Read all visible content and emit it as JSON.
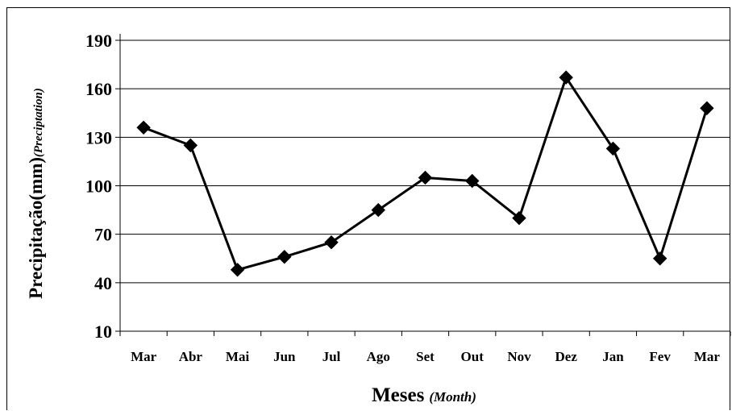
{
  "chart_data": {
    "type": "line",
    "categories": [
      "Mar",
      "Abr",
      "Mai",
      "Jun",
      "Jul",
      "Ago",
      "Set",
      "Out",
      "Nov",
      "Dez",
      "Jan",
      "Fev",
      "Mar"
    ],
    "series": [
      {
        "values": [
          136,
          125,
          48,
          56,
          65,
          85,
          105,
          103,
          80,
          167,
          123,
          55,
          148
        ]
      }
    ],
    "ylim": [
      10,
      190
    ],
    "yticks": [
      10,
      40,
      70,
      100,
      130,
      160,
      190
    ],
    "ylabel_main": "Precipitação(mm)",
    "ylabel_sub": "(Preciptation)",
    "xlabel_main": "Meses",
    "xlabel_sub": "(Month)",
    "grid": "horizontal",
    "marker": "diamond",
    "line_color": "#000000"
  }
}
